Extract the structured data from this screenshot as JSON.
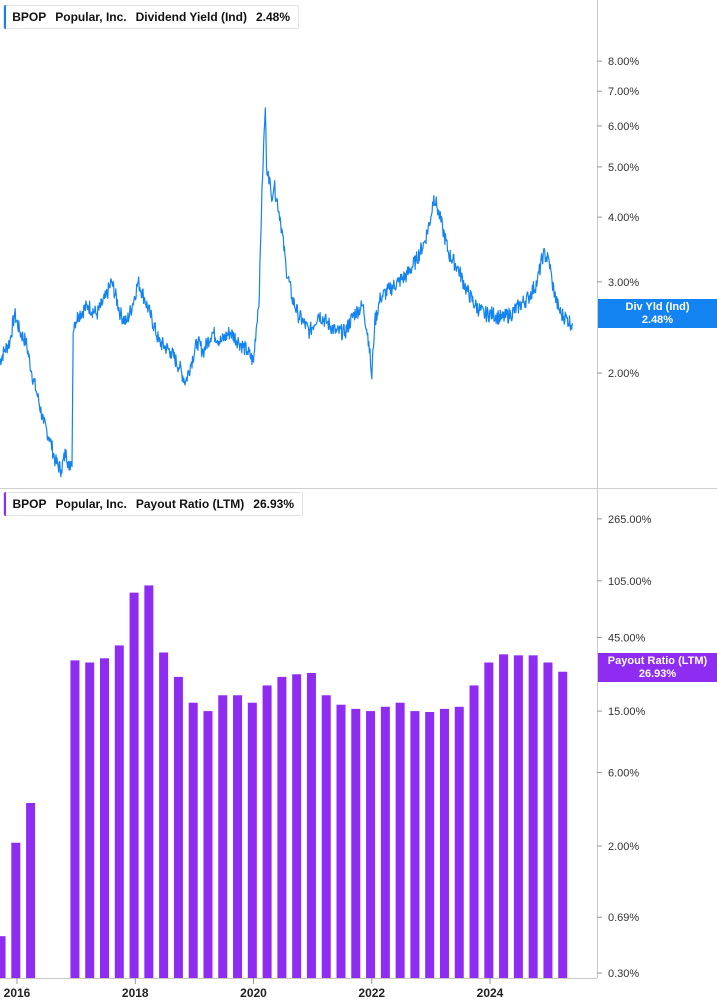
{
  "chart_data": [
    {
      "type": "line",
      "legend": {
        "ticker": "BPOP",
        "company": "Popular, Inc.",
        "metric": "Dividend Yield (Ind)",
        "value": "2.48%"
      },
      "badge": {
        "label": "Div Yld (Ind)",
        "value": "2.48%"
      },
      "color": "#1283f0",
      "y_scale": "log",
      "ylim": [
        1.2,
        10.5
      ],
      "yticks": [
        {
          "v": 8,
          "label": "8.00%"
        },
        {
          "v": 7,
          "label": "7.00%"
        },
        {
          "v": 6,
          "label": "6.00%"
        },
        {
          "v": 5,
          "label": "5.00%"
        },
        {
          "v": 4,
          "label": "4.00%"
        },
        {
          "v": 3,
          "label": "3.00%"
        },
        {
          "v": 2,
          "label": "2.00%"
        }
      ],
      "x": [
        2015.7,
        2015.78,
        2015.88,
        2015.96,
        2016.05,
        2016.15,
        2016.25,
        2016.35,
        2016.45,
        2016.55,
        2016.65,
        2016.75,
        2016.83,
        2016.88,
        2016.91,
        2016.93,
        2016.95,
        2016.97,
        2017.05,
        2017.2,
        2017.35,
        2017.5,
        2017.6,
        2017.75,
        2017.85,
        2017.95,
        2018.05,
        2018.15,
        2018.25,
        2018.4,
        2018.6,
        2018.75,
        2018.85,
        2018.95,
        2019.05,
        2019.15,
        2019.3,
        2019.45,
        2019.6,
        2019.75,
        2019.9,
        2020.0,
        2020.1,
        2020.15,
        2020.2,
        2020.22,
        2020.25,
        2020.3,
        2020.35,
        2020.45,
        2020.55,
        2020.65,
        2020.75,
        2020.85,
        2020.95,
        2021.1,
        2021.25,
        2021.4,
        2021.55,
        2021.7,
        2021.85,
        2021.95,
        2022.0,
        2022.05,
        2022.15,
        2022.3,
        2022.45,
        2022.6,
        2022.75,
        2022.9,
        2023.0,
        2023.05,
        2023.1,
        2023.15,
        2023.2,
        2023.3,
        2023.45,
        2023.6,
        2023.75,
        2023.9,
        2024.05,
        2024.2,
        2024.35,
        2024.5,
        2024.65,
        2024.8,
        2024.9,
        2025.0,
        2025.05,
        2025.12,
        2025.2,
        2025.3,
        2025.4
      ],
      "y": [
        2.1,
        2.2,
        2.3,
        2.6,
        2.4,
        2.3,
        2.0,
        1.8,
        1.6,
        1.5,
        1.35,
        1.3,
        1.42,
        1.3,
        1.35,
        1.32,
        2.4,
        2.5,
        2.6,
        2.7,
        2.6,
        2.8,
        3.0,
        2.6,
        2.5,
        2.7,
        3.0,
        2.8,
        2.6,
        2.3,
        2.2,
        2.05,
        1.92,
        2.1,
        2.3,
        2.2,
        2.4,
        2.3,
        2.4,
        2.3,
        2.2,
        2.1,
        2.85,
        4.7,
        6.5,
        5.0,
        4.9,
        4.4,
        4.6,
        4.0,
        3.2,
        2.8,
        2.6,
        2.5,
        2.4,
        2.6,
        2.5,
        2.4,
        2.4,
        2.6,
        2.7,
        2.3,
        1.95,
        2.5,
        2.8,
        2.9,
        3.0,
        3.1,
        3.3,
        3.6,
        4.0,
        4.4,
        4.2,
        4.0,
        3.8,
        3.4,
        3.2,
        2.9,
        2.7,
        2.6,
        2.6,
        2.55,
        2.6,
        2.7,
        2.8,
        3.0,
        3.4,
        3.3,
        3.0,
        2.75,
        2.6,
        2.55,
        2.48
      ]
    },
    {
      "type": "bar",
      "legend": {
        "ticker": "BPOP",
        "company": "Popular, Inc.",
        "metric": "Payout Ratio (LTM)",
        "value": "26.93%"
      },
      "badge": {
        "label": "Payout Ratio (LTM)",
        "value": "26.93%"
      },
      "color": "#8e2cf2",
      "y_scale": "log",
      "ylim": [
        0.3,
        420
      ],
      "yticks": [
        {
          "v": 265,
          "label": "265.00%"
        },
        {
          "v": 105,
          "label": "105.00%"
        },
        {
          "v": 45,
          "label": "45.00%"
        },
        {
          "v": 15,
          "label": "15.00%"
        },
        {
          "v": 6,
          "label": "6.00%"
        },
        {
          "v": 2,
          "label": "2.00%"
        },
        {
          "v": 0.69,
          "label": "0.69%"
        },
        {
          "v": 0.3,
          "label": "0.30%"
        }
      ],
      "x": [
        2015.73,
        2015.98,
        2016.23,
        2016.98,
        2017.23,
        2017.48,
        2017.73,
        2017.98,
        2018.23,
        2018.48,
        2018.73,
        2018.98,
        2019.23,
        2019.48,
        2019.73,
        2019.98,
        2020.23,
        2020.48,
        2020.73,
        2020.98,
        2021.23,
        2021.48,
        2021.73,
        2021.98,
        2022.23,
        2022.48,
        2022.73,
        2022.98,
        2023.23,
        2023.48,
        2023.73,
        2023.98,
        2024.23,
        2024.48,
        2024.73,
        2024.98,
        2025.23
      ],
      "values": [
        0.52,
        2.1,
        3.8,
        32,
        31,
        33,
        40,
        88,
        98,
        36,
        25,
        17,
        15,
        19,
        19,
        17,
        22,
        25,
        26,
        26.5,
        19,
        16.5,
        15.5,
        15,
        16,
        17,
        15,
        14.8,
        15.5,
        16,
        22,
        31,
        35,
        34.5,
        34.5,
        31,
        27
      ]
    }
  ],
  "x_axis": {
    "ticks": [
      {
        "v": 2016,
        "label": "2016"
      },
      {
        "v": 2018,
        "label": "2018"
      },
      {
        "v": 2020,
        "label": "2020"
      },
      {
        "v": 2022,
        "label": "2022"
      },
      {
        "v": 2024,
        "label": "2024"
      }
    ]
  }
}
